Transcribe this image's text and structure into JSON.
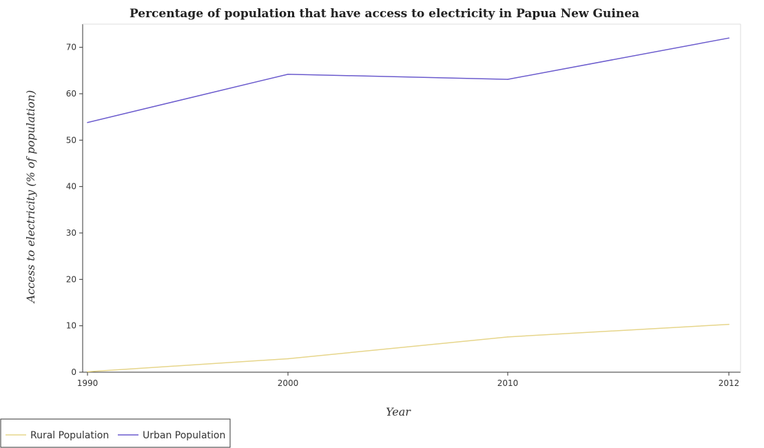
{
  "chart_data": {
    "type": "line",
    "title": "Percentage of population that have access to electricity in Papua New Guinea",
    "xlabel": "Year",
    "ylabel": "Access to electricity (% of population)",
    "categories": [
      "1990",
      "2000",
      "2010",
      "2012"
    ],
    "ylim": [
      0,
      75
    ],
    "yticks": [
      0,
      10,
      20,
      30,
      40,
      50,
      60,
      70
    ],
    "grid": false,
    "legend_position": "bottom-left",
    "series": [
      {
        "name": "Rural Population",
        "color": "#e6d58a",
        "values": [
          0.1,
          2.9,
          7.6,
          10.3
        ]
      },
      {
        "name": "Urban Population",
        "color": "#6a5acd",
        "values": [
          53.8,
          64.2,
          63.1,
          72.0
        ]
      }
    ]
  }
}
